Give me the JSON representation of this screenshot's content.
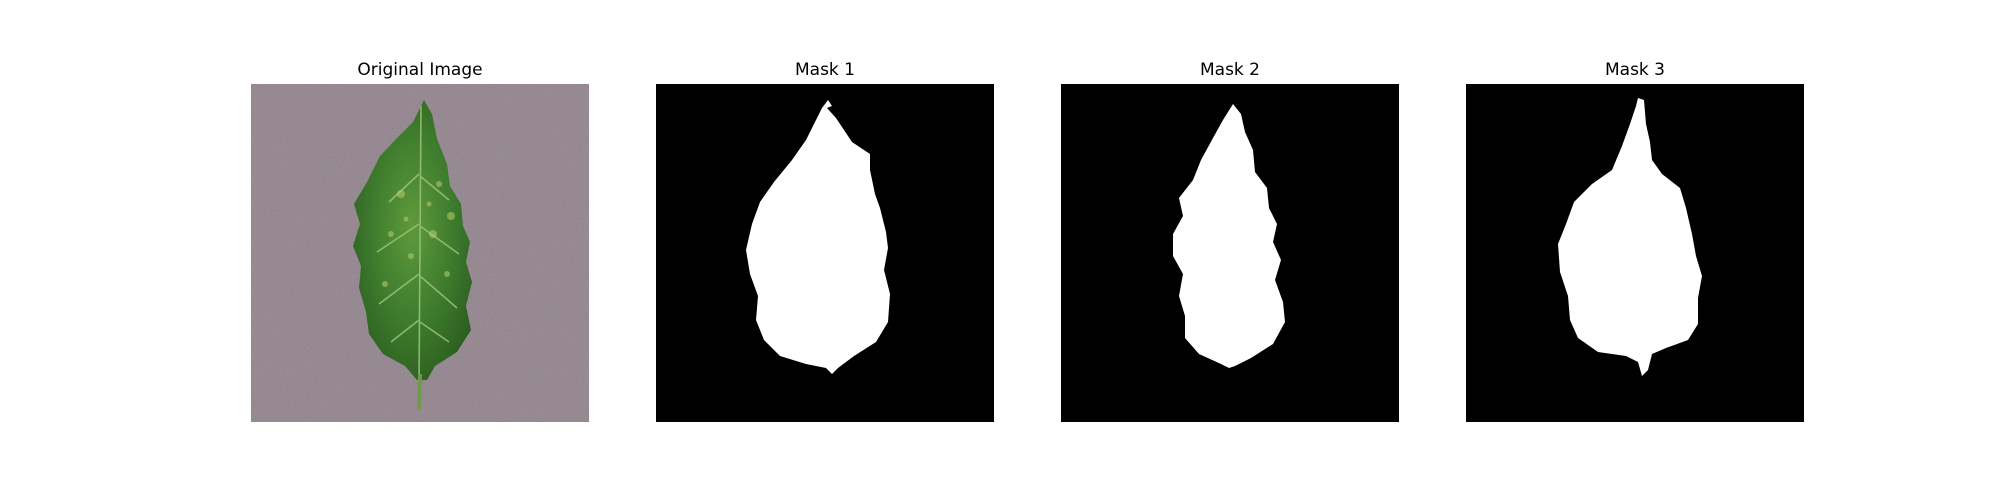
{
  "figure": {
    "panels": [
      {
        "title": "Original Image",
        "kind": "photo",
        "background": "#8b7d86",
        "leaf": "#3d7a2c"
      },
      {
        "title": "Mask 1",
        "kind": "mask",
        "background": "#000000",
        "foreground": "#ffffff"
      },
      {
        "title": "Mask 2",
        "kind": "mask",
        "background": "#000000",
        "foreground": "#ffffff"
      },
      {
        "title": "Mask 3",
        "kind": "mask",
        "background": "#000000",
        "foreground": "#ffffff"
      }
    ]
  }
}
